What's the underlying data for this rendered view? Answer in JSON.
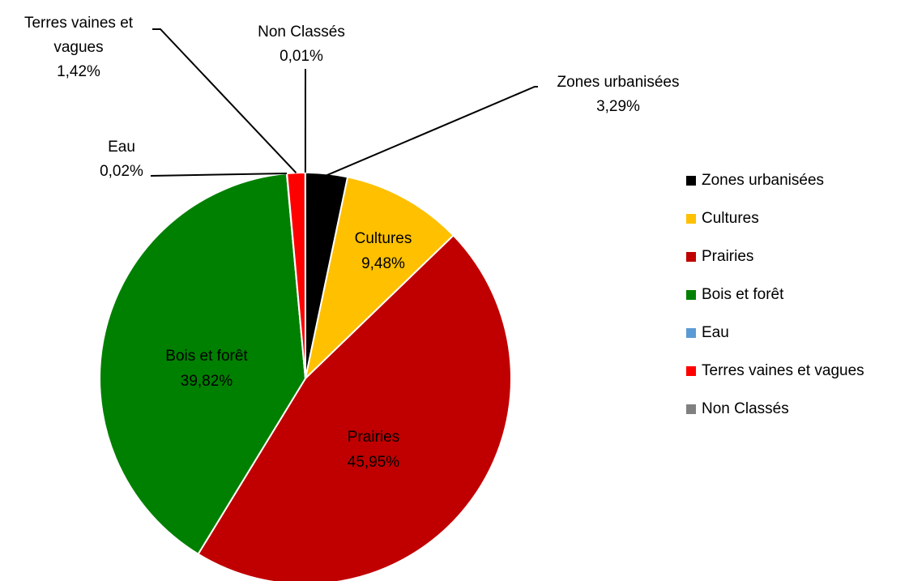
{
  "chart_data": {
    "type": "pie",
    "title": "",
    "legend_position": "right",
    "start_angle": "12 o'clock, clockwise",
    "slices": [
      {
        "label": "Zones urbanisées",
        "value": 3.29,
        "value_label": "3,29%",
        "color": "#000000",
        "label_position": "outside"
      },
      {
        "label": "Cultures",
        "value": 9.48,
        "value_label": "9,48%",
        "color": "#FFC000",
        "label_position": "inside"
      },
      {
        "label": "Prairies",
        "value": 45.95,
        "value_label": "45,95%",
        "color": "#C00000",
        "label_position": "inside"
      },
      {
        "label": "Bois et forêt",
        "value": 39.82,
        "value_label": "39,82%",
        "color": "#008000",
        "label_position": "inside"
      },
      {
        "label": "Eau",
        "value": 0.02,
        "value_label": "0,02%",
        "color": "#5B9BD5",
        "label_position": "outside"
      },
      {
        "label": "Terres vaines et vagues",
        "value": 1.42,
        "value_label": "1,42%",
        "color": "#FF0000",
        "label_position": "outside"
      },
      {
        "label": "Non Classés",
        "value": 0.01,
        "value_label": "0,01%",
        "color": "#808080",
        "label_position": "outside"
      }
    ],
    "outside_label_lines": {
      "Terres vaines et vagues": [
        "Terres vaines et",
        "vagues",
        "1,42%"
      ]
    }
  }
}
